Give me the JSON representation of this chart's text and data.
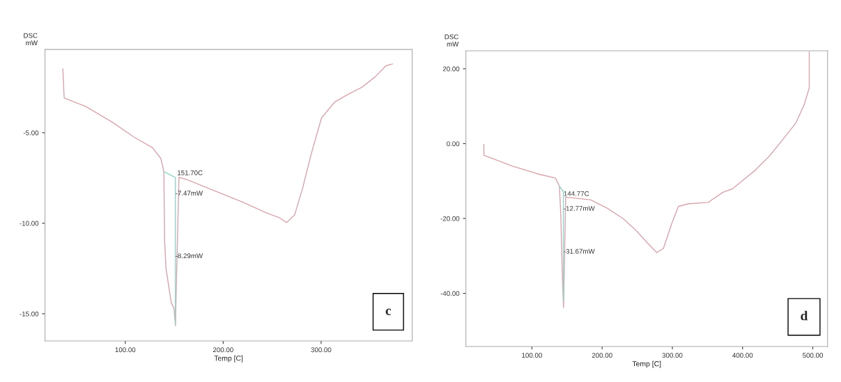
{
  "chart_data": [
    {
      "type": "line",
      "xlabel": "Temp [C]",
      "ylabel": "DSC\nmW",
      "xlim": [
        18,
        393
      ],
      "ylim": [
        -16.5,
        -0.4
      ],
      "xticks": [
        {
          "value": 100,
          "label": "100.00"
        },
        {
          "value": 200,
          "label": "200.00"
        },
        {
          "value": 300,
          "label": "300.00"
        }
      ],
      "yticks": [
        {
          "value": -5,
          "label": "-5.00"
        },
        {
          "value": -10,
          "label": "-10.00"
        },
        {
          "value": -15,
          "label": "-15.00"
        }
      ],
      "grid": false,
      "legend": false,
      "series": [
        {
          "color": "#d9a3ab",
          "x": [
            36.2,
            37.6,
            59.4,
            86.8,
            108.6,
            127.9,
            136.3,
            139.4,
            140.2,
            141.6,
            147,
            149.8,
            151.2,
            154.8,
            163.4,
            191,
            218,
            245.7,
            256.6,
            264.8,
            273,
            281.2,
            289.4,
            300.4,
            314.1,
            327.8,
            341.4,
            355.2,
            366.2,
            373
          ],
          "values": [
            -1.46,
            -3.08,
            -3.54,
            -4.42,
            -5.23,
            -5.83,
            -6.42,
            -7.15,
            -11.0,
            -12.5,
            -14.4,
            -14.7,
            -15.66,
            -7.46,
            -7.6,
            -8.2,
            -8.79,
            -9.46,
            -9.67,
            -9.96,
            -9.53,
            -8.05,
            -6.27,
            -4.18,
            -3.29,
            -2.87,
            -2.5,
            -1.91,
            -1.3,
            -1.2
          ]
        },
        {
          "color": "#8fd6c8",
          "x": [
            139.4,
            151.2,
            151.2
          ],
          "values": [
            -7.15,
            -7.47,
            -15.6
          ]
        }
      ],
      "annotations": [
        "151.70C",
        "-7.47mW",
        "-8.29mW",
        "c"
      ]
    },
    {
      "type": "line",
      "xlabel": "Temp [C]",
      "ylabel": "DSC\nmW",
      "xlim": [
        6,
        521
      ],
      "ylim": [
        -54.2,
        24.8
      ],
      "xticks": [
        {
          "value": 100,
          "label": "100.00"
        },
        {
          "value": 200,
          "label": "200.00"
        },
        {
          "value": 300,
          "label": "300.00"
        },
        {
          "value": 400,
          "label": "400.00"
        },
        {
          "value": 500,
          "label": "500.00"
        }
      ],
      "yticks": [
        {
          "value": 20,
          "label": "20.00"
        },
        {
          "value": 0,
          "label": "0.00"
        },
        {
          "value": -20,
          "label": "-20.00"
        },
        {
          "value": -40,
          "label": "-40.00"
        }
      ],
      "grid": false,
      "legend": false,
      "series": [
        {
          "color": "#d9a3ab",
          "x": [
            31.6,
            31.6,
            72,
            110.4,
            133.5,
            139.2,
            141.2,
            143.1,
            145,
            148.1,
            183.5,
            206.6,
            229.7,
            248.9,
            264.3,
            277.8,
            287.3,
            298.9,
            308.5,
            322,
            350.8,
            371.9,
            385.4,
            418.1,
            437.3,
            456.5,
            475.8,
            487.3,
            495,
            495
          ],
          "values": [
            -0.2,
            -3.1,
            -6.0,
            -8.2,
            -9.2,
            -11.4,
            -19.3,
            -33.7,
            -43.8,
            -14.3,
            -15.0,
            -17.2,
            -20.0,
            -23.3,
            -26.5,
            -29.1,
            -28.0,
            -21.5,
            -16.8,
            -16.1,
            -15.7,
            -13.0,
            -12.1,
            -7.1,
            -3.5,
            0.9,
            5.5,
            10.2,
            14.9,
            24.6
          ]
        },
        {
          "color": "#8fd6c8",
          "x": [
            139.2,
            144.8,
            144.8
          ],
          "values": [
            -11.4,
            -12.8,
            -42
          ]
        }
      ],
      "annotations": [
        "144.77C",
        "-12.77mW",
        "-31.67mW",
        "d"
      ]
    }
  ]
}
